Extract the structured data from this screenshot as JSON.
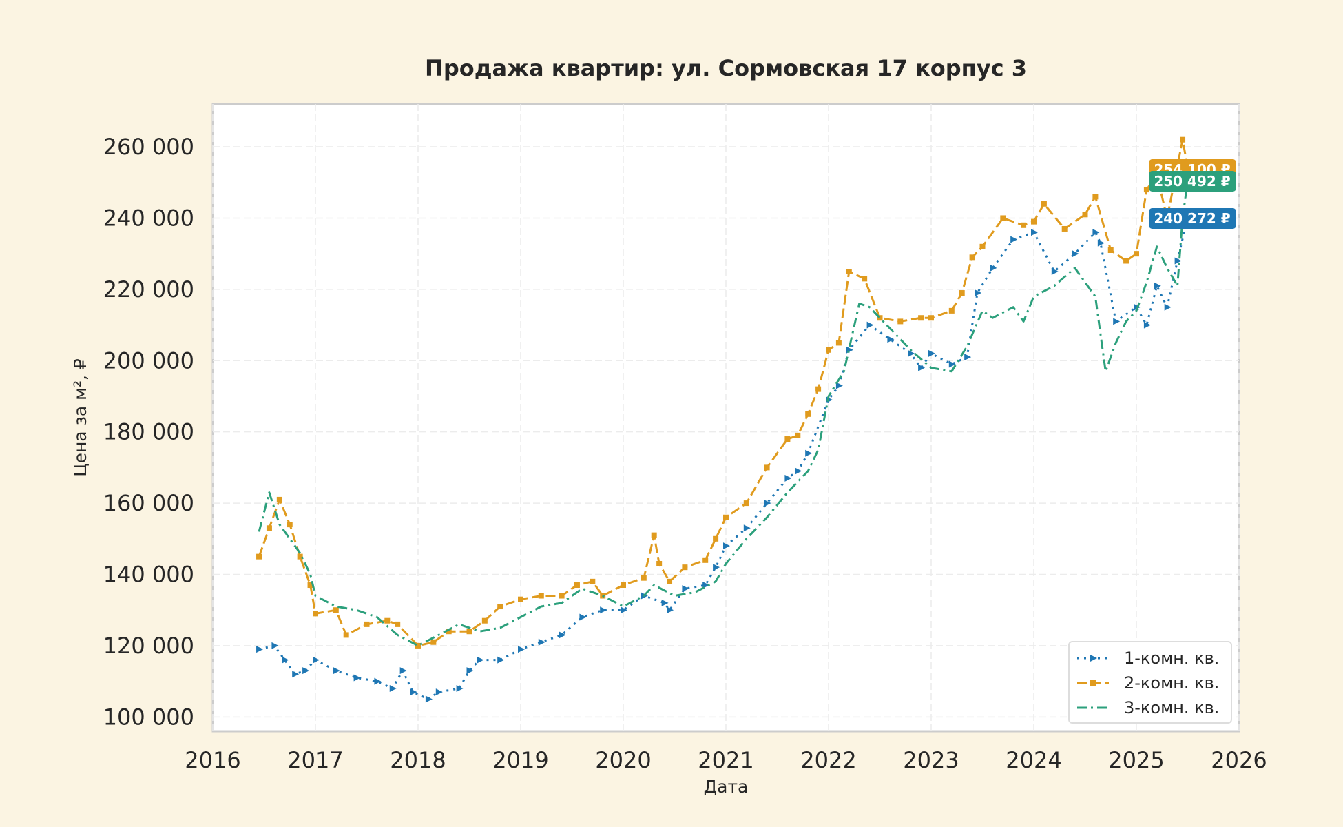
{
  "chart_data": {
    "type": "line",
    "title": "Продажа квартир: ул. Сормовская 17 корпус 3",
    "xlabel": "Дата",
    "ylabel": "Цена за м², ₽",
    "xlim": [
      2016,
      2026
    ],
    "ylim": [
      96000,
      272000
    ],
    "x_ticks": [
      "2016",
      "2017",
      "2018",
      "2019",
      "2020",
      "2021",
      "2022",
      "2023",
      "2024",
      "2025",
      "2026"
    ],
    "y_ticks": [
      {
        "value": 100000,
        "label": "100 000"
      },
      {
        "value": 120000,
        "label": "120 000"
      },
      {
        "value": 140000,
        "label": "140 000"
      },
      {
        "value": 160000,
        "label": "160 000"
      },
      {
        "value": 180000,
        "label": "180 000"
      },
      {
        "value": 200000,
        "label": "200 000"
      },
      {
        "value": 220000,
        "label": "220 000"
      },
      {
        "value": 240000,
        "label": "240 000"
      },
      {
        "value": 260000,
        "label": "260 000"
      }
    ],
    "grid": true,
    "legend_position": "bottom-right",
    "series": [
      {
        "name": "1-комн. кв.",
        "color": "#1f77b4",
        "style": "dotted",
        "marker": "triangle-right",
        "x": [
          2016.45,
          2016.6,
          2016.7,
          2016.8,
          2016.9,
          2017.0,
          2017.2,
          2017.4,
          2017.6,
          2017.75,
          2017.85,
          2017.95,
          2018.1,
          2018.2,
          2018.4,
          2018.5,
          2018.6,
          2018.8,
          2019.0,
          2019.2,
          2019.4,
          2019.6,
          2019.8,
          2020.0,
          2020.2,
          2020.4,
          2020.45,
          2020.6,
          2020.8,
          2020.9,
          2021.0,
          2021.2,
          2021.4,
          2021.6,
          2021.7,
          2021.8,
          2022.0,
          2022.1,
          2022.2,
          2022.4,
          2022.6,
          2022.8,
          2022.9,
          2023.0,
          2023.2,
          2023.35,
          2023.45,
          2023.6,
          2023.8,
          2024.0,
          2024.2,
          2024.4,
          2024.6,
          2024.65,
          2024.8,
          2025.0,
          2025.1,
          2025.2,
          2025.3,
          2025.4,
          2025.5
        ],
        "y": [
          119000,
          120000,
          116000,
          112000,
          113000,
          116000,
          113000,
          111000,
          110000,
          108000,
          113000,
          107000,
          105000,
          107000,
          108000,
          113000,
          116000,
          116000,
          119000,
          121000,
          123000,
          128000,
          130000,
          130000,
          134000,
          132000,
          130000,
          136000,
          137000,
          142000,
          148000,
          153000,
          160000,
          167000,
          169000,
          174000,
          189000,
          193000,
          203000,
          210000,
          206000,
          202000,
          198000,
          202000,
          199000,
          201000,
          219000,
          226000,
          234000,
          236000,
          225000,
          230000,
          236000,
          233000,
          211000,
          215000,
          210000,
          221000,
          215000,
          228000,
          240272
        ]
      },
      {
        "name": "2-комн. кв.",
        "color": "#e09b1e",
        "style": "dashed",
        "marker": "square",
        "x": [
          2016.45,
          2016.55,
          2016.65,
          2016.75,
          2016.85,
          2016.95,
          2017.0,
          2017.2,
          2017.3,
          2017.5,
          2017.7,
          2017.8,
          2018.0,
          2018.15,
          2018.3,
          2018.5,
          2018.65,
          2018.8,
          2019.0,
          2019.2,
          2019.4,
          2019.55,
          2019.7,
          2019.8,
          2020.0,
          2020.2,
          2020.3,
          2020.35,
          2020.45,
          2020.6,
          2020.8,
          2020.9,
          2021.0,
          2021.2,
          2021.4,
          2021.6,
          2021.7,
          2021.8,
          2021.9,
          2022.0,
          2022.1,
          2022.2,
          2022.35,
          2022.5,
          2022.7,
          2022.9,
          2023.0,
          2023.2,
          2023.3,
          2023.4,
          2023.5,
          2023.7,
          2023.9,
          2024.0,
          2024.1,
          2024.3,
          2024.5,
          2024.6,
          2024.75,
          2024.9,
          2025.0,
          2025.1,
          2025.2,
          2025.3,
          2025.45,
          2025.5
        ],
        "y": [
          145000,
          153000,
          161000,
          154000,
          145000,
          137000,
          129000,
          130000,
          123000,
          126000,
          127000,
          126000,
          120000,
          121000,
          124000,
          124000,
          127000,
          131000,
          133000,
          134000,
          134000,
          137000,
          138000,
          134000,
          137000,
          139000,
          151000,
          143000,
          138000,
          142000,
          144000,
          150000,
          156000,
          160000,
          170000,
          178000,
          179000,
          185000,
          192000,
          203000,
          205000,
          225000,
          223000,
          212000,
          211000,
          212000,
          212000,
          214000,
          219000,
          229000,
          232000,
          240000,
          238000,
          239000,
          244000,
          237000,
          241000,
          246000,
          231000,
          228000,
          230000,
          248000,
          252000,
          240000,
          262000,
          254100
        ]
      },
      {
        "name": "3-комн. кв.",
        "color": "#2ca07c",
        "style": "dashdot",
        "marker": "none",
        "x": [
          2016.45,
          2016.55,
          2016.65,
          2016.75,
          2016.85,
          2016.95,
          2017.0,
          2017.2,
          2017.4,
          2017.6,
          2017.8,
          2018.0,
          2018.2,
          2018.4,
          2018.6,
          2018.8,
          2019.0,
          2019.2,
          2019.4,
          2019.6,
          2019.8,
          2020.0,
          2020.2,
          2020.3,
          2020.5,
          2020.7,
          2020.9,
          2021.0,
          2021.2,
          2021.4,
          2021.6,
          2021.8,
          2021.9,
          2022.0,
          2022.15,
          2022.3,
          2022.4,
          2022.6,
          2022.8,
          2023.0,
          2023.2,
          2023.35,
          2023.5,
          2023.6,
          2023.8,
          2023.9,
          2024.0,
          2024.2,
          2024.4,
          2024.55,
          2024.6,
          2024.7,
          2024.8,
          2024.9,
          2025.0,
          2025.1,
          2025.2,
          2025.3,
          2025.4,
          2025.45,
          2025.5
        ],
        "y": [
          152000,
          163000,
          154000,
          150000,
          146000,
          140000,
          134000,
          131000,
          130000,
          128000,
          123000,
          120000,
          123000,
          126000,
          124000,
          125000,
          128000,
          131000,
          132000,
          136000,
          134000,
          131000,
          134000,
          137000,
          134000,
          135000,
          138000,
          143000,
          150000,
          156000,
          163000,
          169000,
          175000,
          190000,
          197000,
          216000,
          215000,
          209000,
          203000,
          198000,
          197000,
          204000,
          214000,
          212000,
          215000,
          211000,
          218000,
          221000,
          226000,
          220000,
          218000,
          197000,
          205000,
          211000,
          214000,
          222000,
          232000,
          226000,
          221000,
          240000,
          250492
        ]
      }
    ],
    "end_labels": [
      {
        "series": "2-комн. кв.",
        "text": "254 100 ₽",
        "value": 254100,
        "color": "#e09b1e"
      },
      {
        "series": "3-комн. кв.",
        "text": "250 492 ₽",
        "value": 250492,
        "color": "#2ca07c"
      },
      {
        "series": "1-комн. кв.",
        "text": "240 272 ₽",
        "value": 240272,
        "color": "#1f77b4"
      }
    ]
  }
}
